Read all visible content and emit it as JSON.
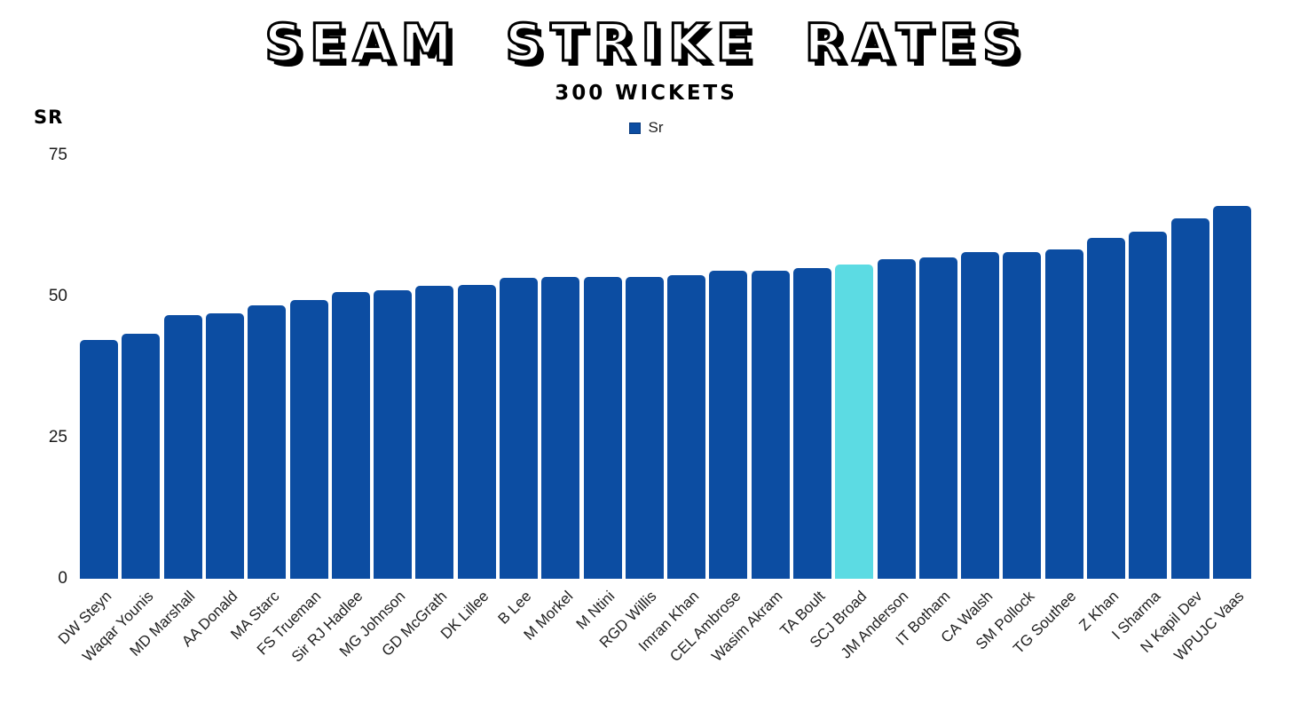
{
  "header": {
    "title": "SEAM STRIKE RATES",
    "subtitle": "300 WICKETS"
  },
  "y_axis": {
    "title": "SR"
  },
  "legend": {
    "label": "Sr",
    "swatch_color": "#0c4da2"
  },
  "colors": {
    "bar": "#0c4da2",
    "highlight_bar": "#5cdbe3",
    "background": "#ffffff",
    "text": "#1f1f1f"
  },
  "chart_data": {
    "type": "bar",
    "title": "SEAM STRIKE RATES",
    "subtitle": "300 WICKETS",
    "xlabel": "",
    "ylabel": "SR",
    "ylim": [
      0,
      75
    ],
    "yticks": [
      0,
      25,
      50,
      75
    ],
    "grid": false,
    "legend_position": "top-center",
    "legend_entries": [
      "Sr"
    ],
    "series_name": "Sr",
    "highlight_category": "SCJ Broad",
    "categories": [
      "DW Steyn",
      "Waqar Younis",
      "MD Marshall",
      "AA Donald",
      "MA Starc",
      "FS Trueman",
      "Sir RJ Hadlee",
      "MG Johnson",
      "GD McGrath",
      "DK Lillee",
      "B Lee",
      "M Morkel",
      "M Ntini",
      "RGD Willis",
      "Imran Khan",
      "CEL Ambrose",
      "Wasim Akram",
      "TA Boult",
      "SCJ Broad",
      "JM Anderson",
      "IT Botham",
      "CA Walsh",
      "SM Pollock",
      "TG Southee",
      "Z Khan",
      "I Sharma",
      "N Kapil Dev",
      "WPUJC Vaas"
    ],
    "values": [
      42.3,
      43.4,
      46.7,
      47.0,
      48.5,
      49.4,
      50.8,
      51.1,
      51.9,
      52.0,
      53.3,
      53.4,
      53.4,
      53.4,
      53.7,
      54.5,
      54.6,
      55.0,
      55.7,
      56.6,
      56.9,
      57.8,
      57.8,
      58.4,
      60.4,
      61.5,
      63.9,
      66.0
    ]
  }
}
